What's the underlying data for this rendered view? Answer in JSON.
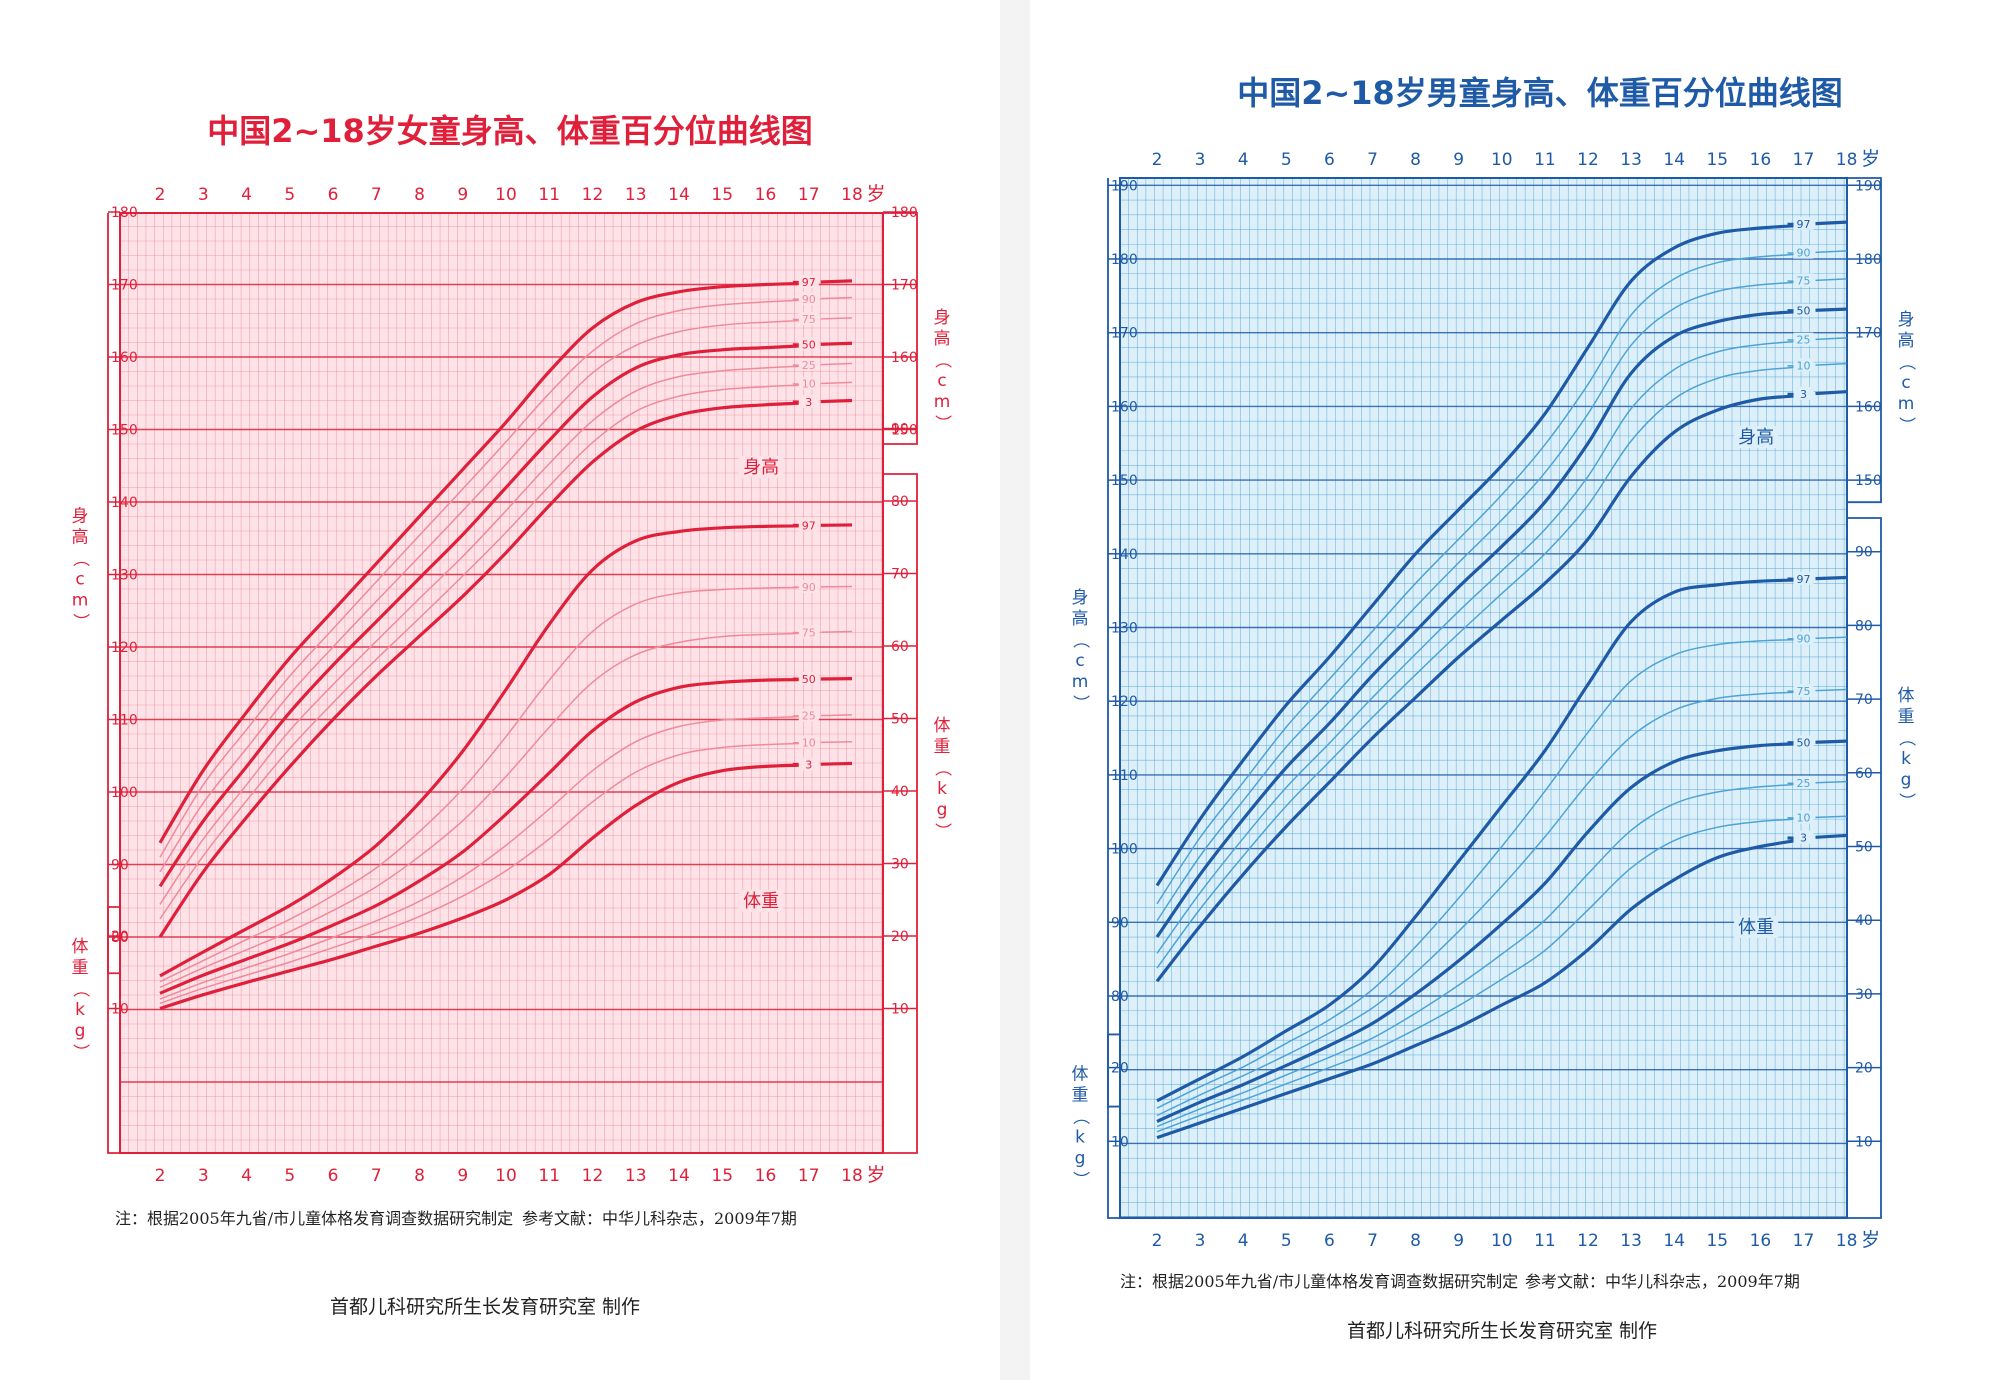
{
  "colors": {
    "girls_accent": "#e0203a",
    "girls_grid": "#f08a9a",
    "girls_fill": "#fde3e8",
    "boys_accent": "#1f5aa6",
    "boys_grid": "#4ea3d6",
    "boys_fill": "#ddf0fa"
  },
  "chart_data": [
    {
      "type": "line",
      "title": "中国2~18岁女童身高、体重百分位曲线图",
      "xlabel": "岁",
      "x_ticks": [
        "2",
        "3",
        "4",
        "5",
        "6",
        "7",
        "8",
        "9",
        "10",
        "11",
        "12",
        "13",
        "14",
        "15",
        "16",
        "17",
        "18"
      ],
      "height_axis": {
        "label": "身高（cm）",
        "unit": "cm",
        "ylim": [
          80,
          180
        ],
        "ticks": [
          "80",
          "90",
          "100",
          "110",
          "120",
          "130",
          "140",
          "150",
          "160",
          "170",
          "180"
        ],
        "right_ticks": [
          "150",
          "160",
          "170",
          "180"
        ]
      },
      "weight_axis": {
        "label": "体重（kg）",
        "unit": "kg",
        "ylim": [
          0,
          95
        ],
        "left_ticks": [
          "10",
          "20"
        ],
        "right_ticks": [
          "10",
          "20",
          "30",
          "40",
          "50",
          "60",
          "70",
          "80",
          "90"
        ]
      },
      "group_labels": [
        "身高",
        "体重"
      ],
      "x": [
        2,
        3,
        4,
        5,
        6,
        7,
        8,
        9,
        10,
        11,
        12,
        13,
        14,
        15,
        16,
        17,
        18
      ],
      "height_series": [
        {
          "name": "97",
          "values": [
            93,
            103,
            111,
            118.5,
            125,
            131.5,
            138,
            144.5,
            151,
            158,
            164,
            167.5,
            169,
            169.7,
            170,
            170.2,
            170.5
          ]
        },
        {
          "name": "90",
          "values": [
            91,
            101,
            108.6,
            116,
            122.5,
            129,
            135.4,
            141.8,
            148.3,
            155,
            160.8,
            164.6,
            166.4,
            167.2,
            167.6,
            167.9,
            168.2
          ]
        },
        {
          "name": "75",
          "values": [
            89,
            98.5,
            106,
            113.5,
            120,
            126.3,
            132.5,
            138.8,
            145.2,
            151.8,
            157.8,
            161.6,
            163.5,
            164.4,
            164.8,
            165.1,
            165.4
          ]
        },
        {
          "name": "50",
          "values": [
            87,
            96,
            103.5,
            111,
            117.5,
            123.5,
            129.5,
            135.5,
            142,
            148.5,
            154.5,
            158.5,
            160.3,
            161,
            161.3,
            161.6,
            161.9
          ]
        },
        {
          "name": "25",
          "values": [
            84.5,
            93.5,
            101,
            108.5,
            114.8,
            120.8,
            126.7,
            132.5,
            138.8,
            145.3,
            151.2,
            155.3,
            157.3,
            158.1,
            158.5,
            158.8,
            159.1
          ]
        },
        {
          "name": "10",
          "values": [
            82.5,
            91.2,
            98.8,
            106,
            112.3,
            118.3,
            124,
            129.8,
            135.8,
            142.2,
            148.2,
            152.5,
            154.6,
            155.5,
            155.9,
            156.2,
            156.5
          ]
        },
        {
          "name": "3",
          "values": [
            80,
            89,
            96.5,
            103.5,
            110,
            116,
            121.5,
            127,
            133,
            139.5,
            145.5,
            149.8,
            152,
            153,
            153.4,
            153.7,
            154
          ]
        }
      ],
      "weight_series": [
        {
          "name": "97",
          "values": [
            14.5,
            17.8,
            21,
            24.2,
            28,
            32.5,
            38.4,
            45.5,
            54,
            63,
            70.5,
            74.5,
            75.8,
            76.3,
            76.5,
            76.6,
            76.7
          ]
        },
        {
          "name": "90",
          "values": [
            13.7,
            16.6,
            19.5,
            22.3,
            25.6,
            29.4,
            34.4,
            40.3,
            47.5,
            55.3,
            62,
            65.8,
            67.3,
            67.8,
            68,
            68.1,
            68.2
          ]
        },
        {
          "name": "75",
          "values": [
            12.9,
            15.6,
            18.1,
            20.6,
            23.5,
            26.8,
            31,
            35.9,
            42,
            48.8,
            55,
            58.8,
            60.5,
            61.3,
            61.6,
            61.8,
            62
          ]
        },
        {
          "name": "50",
          "values": [
            12.1,
            14.6,
            16.8,
            19,
            21.5,
            24.2,
            27.6,
            31.6,
            36.8,
            42.5,
            48.3,
            52.3,
            54.3,
            55,
            55.3,
            55.4,
            55.5
          ]
        },
        {
          "name": "25",
          "values": [
            11.3,
            13.6,
            15.6,
            17.6,
            19.8,
            22.1,
            24.8,
            28.2,
            32.5,
            37.5,
            42.8,
            46.8,
            48.9,
            49.8,
            50.1,
            50.3,
            50.5
          ]
        },
        {
          "name": "10",
          "values": [
            10.7,
            12.8,
            14.6,
            16.4,
            18.4,
            20.4,
            22.7,
            25.5,
            29,
            33.4,
            38.5,
            42.6,
            45,
            46,
            46.4,
            46.6,
            46.8
          ]
        },
        {
          "name": "3",
          "values": [
            10,
            11.9,
            13.6,
            15.2,
            16.8,
            18.6,
            20.4,
            22.5,
            25,
            28.5,
            33.5,
            38,
            41.2,
            42.8,
            43.4,
            43.6,
            43.8
          ]
        }
      ]
    },
    {
      "type": "line",
      "title": "中国2~18岁男童身高、体重百分位曲线图",
      "xlabel": "岁",
      "x_ticks": [
        "2",
        "3",
        "4",
        "5",
        "6",
        "7",
        "8",
        "9",
        "10",
        "11",
        "12",
        "13",
        "14",
        "15",
        "16",
        "17",
        "18"
      ],
      "height_axis": {
        "label": "身高（cm）",
        "unit": "cm",
        "ylim": [
          70,
          190
        ],
        "ticks": [
          "80",
          "90",
          "100",
          "110",
          "120",
          "130",
          "140",
          "150",
          "160",
          "170",
          "180",
          "190"
        ],
        "right_ticks": [
          "150",
          "160",
          "170",
          "180",
          "190"
        ]
      },
      "weight_axis": {
        "label": "体重（kg）",
        "unit": "kg",
        "ylim": [
          0,
          95
        ],
        "left_ticks": [
          "10",
          "20"
        ],
        "right_ticks": [
          "10",
          "20",
          "30",
          "40",
          "50",
          "60",
          "70",
          "80",
          "90"
        ]
      },
      "group_labels": [
        "身高",
        "体重"
      ],
      "x": [
        2,
        3,
        4,
        5,
        6,
        7,
        8,
        9,
        10,
        11,
        12,
        13,
        14,
        15,
        16,
        17,
        18
      ],
      "height_series": [
        {
          "name": "97",
          "values": [
            95,
            104,
            112,
            119.5,
            126,
            133,
            140,
            146,
            152,
            159,
            168,
            177,
            181.5,
            183.5,
            184.2,
            184.6,
            185
          ]
        },
        {
          "name": "90",
          "values": [
            92.5,
            101.5,
            109,
            116.5,
            123,
            129.5,
            136,
            142,
            148,
            154.8,
            163,
            172.4,
            177.3,
            179.5,
            180.3,
            180.7,
            181.1
          ]
        },
        {
          "name": "75",
          "values": [
            90.2,
            99,
            106.5,
            113.8,
            120,
            126.5,
            132.8,
            138.8,
            144.6,
            151,
            159,
            168.3,
            173.3,
            175.6,
            176.5,
            176.9,
            177.3
          ]
        },
        {
          "name": "50",
          "values": [
            88,
            96.5,
            104,
            111,
            117,
            123.5,
            129.5,
            135.5,
            141,
            147,
            155,
            164.5,
            169.5,
            171.5,
            172.5,
            172.9,
            173.2
          ]
        },
        {
          "name": "25",
          "values": [
            85.8,
            94,
            101.4,
            108.3,
            114.3,
            120.5,
            126.4,
            132.2,
            137.7,
            143.3,
            150.5,
            159.7,
            165,
            167.4,
            168.4,
            168.9,
            169.3
          ]
        },
        {
          "name": "10",
          "values": [
            83.8,
            91.8,
            99,
            105.8,
            111.8,
            117.8,
            123.6,
            129.2,
            134.6,
            140,
            146.6,
            155.3,
            161,
            163.8,
            164.9,
            165.4,
            165.8
          ]
        },
        {
          "name": "3",
          "values": [
            82,
            89.5,
            96.5,
            103,
            109,
            115,
            120.5,
            126,
            131,
            136,
            142,
            150.5,
            156.5,
            159.5,
            161,
            161.5,
            162
          ]
        }
      ],
      "weight_series": [
        {
          "name": "97",
          "values": [
            15.5,
            18.5,
            21.5,
            25,
            28.5,
            33.5,
            40.5,
            48,
            55.5,
            63,
            72,
            80.5,
            84.5,
            85.5,
            86,
            86.2,
            86.5
          ]
        },
        {
          "name": "90",
          "values": [
            14.5,
            17.4,
            20.1,
            23.3,
            26.5,
            30.6,
            36.4,
            43,
            50,
            57.5,
            65.5,
            72.5,
            76,
            77.4,
            77.9,
            78.1,
            78.4
          ]
        },
        {
          "name": "75",
          "values": [
            13.5,
            16.3,
            18.9,
            21.7,
            24.7,
            28.1,
            32.9,
            38.5,
            44.6,
            51.3,
            58.6,
            64.9,
            68.5,
            70.1,
            70.7,
            71,
            71.3
          ]
        },
        {
          "name": "50",
          "values": [
            12.7,
            15.3,
            17.7,
            20.3,
            23,
            26,
            30,
            34.5,
            39.5,
            45,
            52,
            58,
            61.5,
            63,
            63.7,
            64,
            64.3
          ]
        },
        {
          "name": "25",
          "values": [
            12,
            14.4,
            16.6,
            19,
            21.4,
            24,
            27.4,
            31.2,
            35.4,
            40,
            46.3,
            52.2,
            55.8,
            57.4,
            58.1,
            58.5,
            58.8
          ]
        },
        {
          "name": "10",
          "values": [
            11.3,
            13.5,
            15.6,
            17.8,
            20,
            22.3,
            25.2,
            28.4,
            32,
            35.9,
            41.4,
            47.1,
            50.8,
            52.6,
            53.4,
            53.8,
            54.1
          ]
        },
        {
          "name": "3",
          "values": [
            10.5,
            12.5,
            14.5,
            16.5,
            18.5,
            20.5,
            23,
            25.5,
            28.5,
            31.5,
            36,
            41.5,
            45.5,
            48.5,
            50,
            51,
            51.5
          ]
        }
      ]
    }
  ],
  "footer": {
    "girls_note": "注：根据2005年九省/市儿童体格发育调查数据研究制定",
    "girls_ref": "参考文献：中华儿科杂志，2009年7期",
    "girls_credit": "首都儿科研究所生长发育研究室 制作",
    "boys_note": "注：根据2005年九省/市儿童体格发育调查数据研究制定",
    "boys_ref": "参考文献：中华儿科杂志，2009年7期",
    "boys_credit": "首都儿科研究所生长发育研究室 制作"
  }
}
